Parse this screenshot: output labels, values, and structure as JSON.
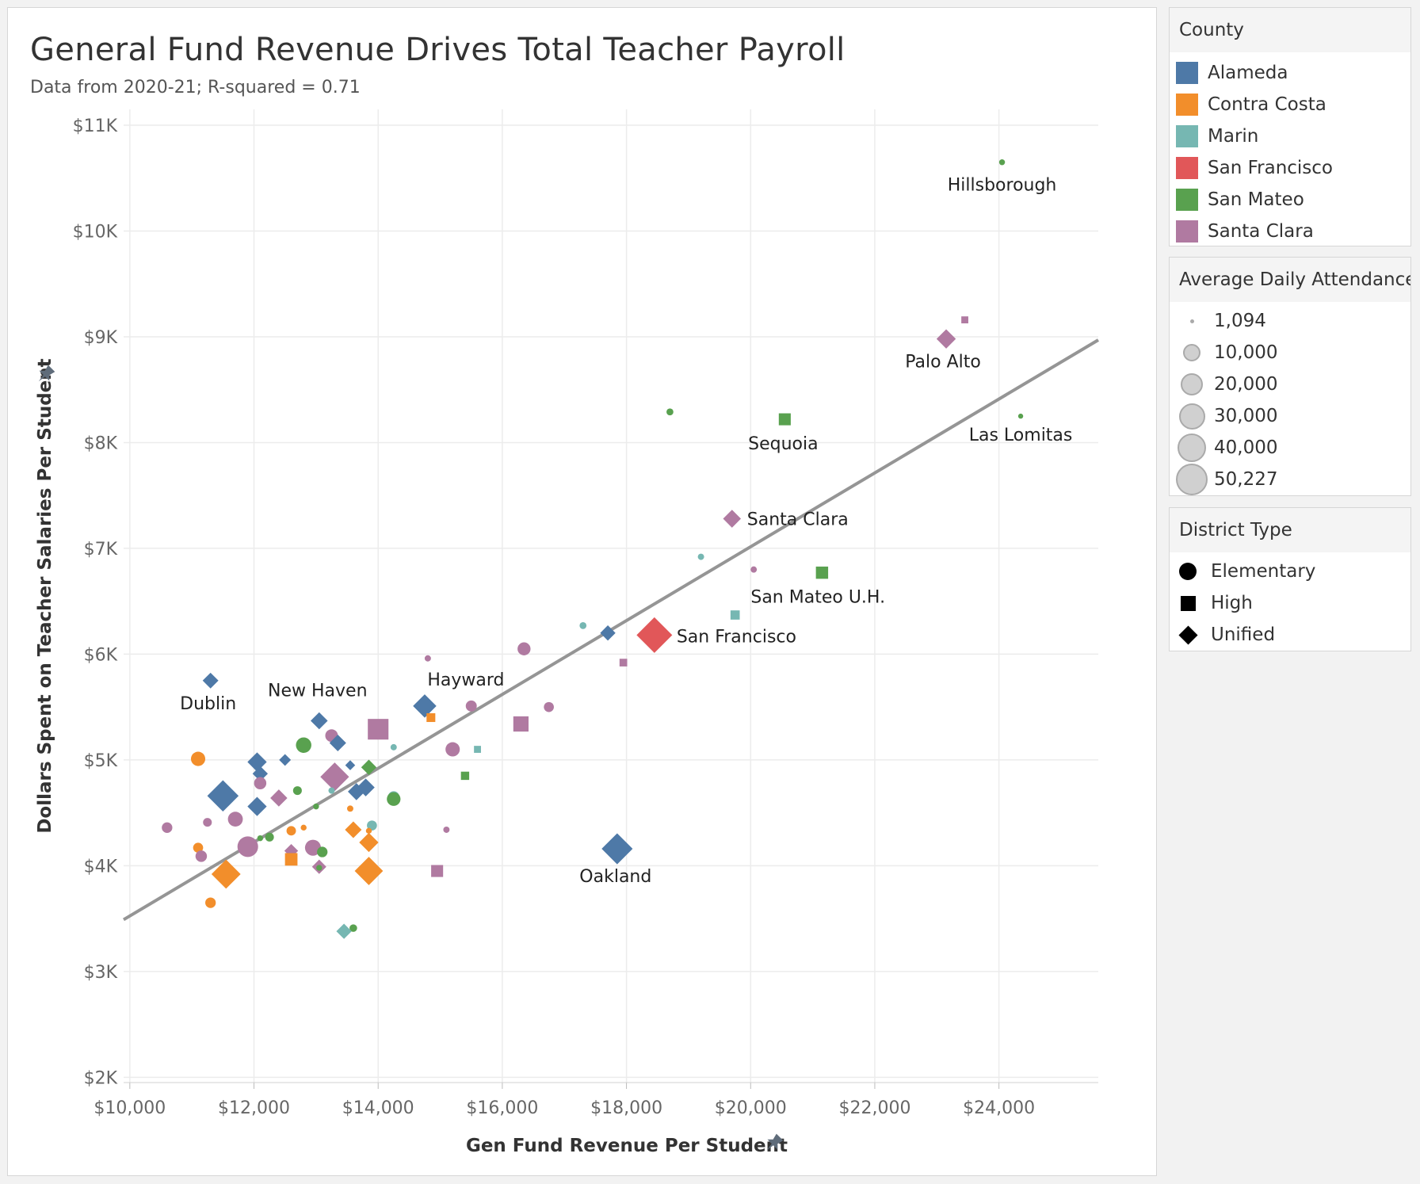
{
  "title": "General Fund Revenue Drives Total Teacher Payroll",
  "subtitle": "Data from 2020-21; R-squared = 0.71",
  "colors": {
    "Alameda": "#4e79a7",
    "Contra Costa": "#f28e2b",
    "Marin": "#76b7b2",
    "San Francisco": "#e15759",
    "San Mateo": "#59a14f",
    "Santa Clara": "#b07aa1",
    "trend": "#959595",
    "grid": "#ececec",
    "axis_text": "#666666",
    "label_text": "#222222"
  },
  "legends": {
    "county": {
      "title": "County",
      "items": [
        "Alameda",
        "Contra Costa",
        "Marin",
        "San Francisco",
        "San Mateo",
        "Santa Clara"
      ]
    },
    "attendance": {
      "title": "Average Daily Attendance",
      "items": [
        {
          "label": "1,094",
          "value": 1094
        },
        {
          "label": "10,000",
          "value": 10000
        },
        {
          "label": "20,000",
          "value": 20000
        },
        {
          "label": "30,000",
          "value": 30000
        },
        {
          "label": "40,000",
          "value": 40000
        },
        {
          "label": "50,227",
          "value": 50227
        }
      ]
    },
    "district_type": {
      "title": "District Type",
      "items": [
        {
          "label": "Elementary",
          "shape": "circle"
        },
        {
          "label": "High",
          "shape": "square"
        },
        {
          "label": "Unified",
          "shape": "diamond"
        }
      ]
    }
  },
  "chart_data": {
    "type": "scatter",
    "xlabel": "Gen Fund Revenue Per Student",
    "ylabel": "Dollars Spent on Teacher Salaries Per Student",
    "xlim": [
      9900,
      25600
    ],
    "ylim": [
      1950,
      11150
    ],
    "x_ticks": [
      10000,
      12000,
      14000,
      16000,
      18000,
      20000,
      22000,
      24000
    ],
    "x_tick_labels": [
      "$10,000",
      "$12,000",
      "$14,000",
      "$16,000",
      "$18,000",
      "$20,000",
      "$22,000",
      "$24,000"
    ],
    "y_ticks": [
      2000,
      3000,
      4000,
      5000,
      6000,
      7000,
      8000,
      9000,
      10000,
      11000
    ],
    "y_tick_labels": [
      "$2K",
      "$3K",
      "$4K",
      "$5K",
      "$6K",
      "$7K",
      "$8K",
      "$9K",
      "$10K",
      "$11K"
    ],
    "grid": true,
    "trend_line": {
      "x": [
        9900,
        25600
      ],
      "y": [
        3490,
        8970
      ]
    },
    "points": [
      {
        "x": 24050,
        "y": 10650,
        "county": "San Mateo",
        "type": "Elementary",
        "ada": 1200,
        "label": "Hillsborough"
      },
      {
        "x": 23150,
        "y": 8980,
        "county": "Santa Clara",
        "type": "Unified",
        "ada": 11000,
        "label": "Palo Alto"
      },
      {
        "x": 23450,
        "y": 9160,
        "county": "Santa Clara",
        "type": "High",
        "ada": 2000
      },
      {
        "x": 24350,
        "y": 8250,
        "county": "San Mateo",
        "type": "Elementary",
        "ada": 1100,
        "label": "Las Lomitas"
      },
      {
        "x": 18700,
        "y": 8290,
        "county": "San Mateo",
        "type": "Elementary",
        "ada": 1500
      },
      {
        "x": 20550,
        "y": 8220,
        "county": "San Mateo",
        "type": "High",
        "ada": 8000,
        "label": "Sequoia"
      },
      {
        "x": 19700,
        "y": 7280,
        "county": "Santa Clara",
        "type": "Unified",
        "ada": 9000,
        "label": "Santa Clara"
      },
      {
        "x": 21150,
        "y": 6770,
        "county": "San Mateo",
        "type": "High",
        "ada": 8500,
        "label": "San Mateo U.H."
      },
      {
        "x": 19200,
        "y": 6920,
        "county": "Marin",
        "type": "Elementary",
        "ada": 1300
      },
      {
        "x": 20050,
        "y": 6800,
        "county": "Santa Clara",
        "type": "Elementary",
        "ada": 1300
      },
      {
        "x": 19750,
        "y": 6370,
        "county": "Marin",
        "type": "High",
        "ada": 4000
      },
      {
        "x": 18450,
        "y": 6180,
        "county": "San Francisco",
        "type": "Unified",
        "ada": 50227,
        "label": "San Francisco"
      },
      {
        "x": 17700,
        "y": 6200,
        "county": "Alameda",
        "type": "Unified",
        "ada": 6000
      },
      {
        "x": 17300,
        "y": 6270,
        "county": "Marin",
        "type": "Elementary",
        "ada": 1500
      },
      {
        "x": 17950,
        "y": 5920,
        "county": "Santa Clara",
        "type": "High",
        "ada": 2500
      },
      {
        "x": 16350,
        "y": 6050,
        "county": "Santa Clara",
        "type": "Elementary",
        "ada": 7000
      },
      {
        "x": 14800,
        "y": 5960,
        "county": "Santa Clara",
        "type": "Elementary",
        "ada": 1300
      },
      {
        "x": 14750,
        "y": 5510,
        "county": "Alameda",
        "type": "Unified",
        "ada": 18000,
        "label": "Hayward"
      },
      {
        "x": 14850,
        "y": 5400,
        "county": "Contra Costa",
        "type": "High",
        "ada": 3500
      },
      {
        "x": 15500,
        "y": 5510,
        "county": "Santa Clara",
        "type": "Elementary",
        "ada": 4500
      },
      {
        "x": 16750,
        "y": 5500,
        "county": "Santa Clara",
        "type": "Elementary",
        "ada": 3500
      },
      {
        "x": 16300,
        "y": 5340,
        "county": "Santa Clara",
        "type": "High",
        "ada": 15000
      },
      {
        "x": 15200,
        "y": 5100,
        "county": "Santa Clara",
        "type": "Elementary",
        "ada": 9000
      },
      {
        "x": 15600,
        "y": 5100,
        "county": "Marin",
        "type": "High",
        "ada": 2000
      },
      {
        "x": 15400,
        "y": 4850,
        "county": "San Mateo",
        "type": "High",
        "ada": 3000
      },
      {
        "x": 14000,
        "y": 5290,
        "county": "Santa Clara",
        "type": "High",
        "ada": 32000
      },
      {
        "x": 14250,
        "y": 5120,
        "county": "Marin",
        "type": "Elementary",
        "ada": 1300
      },
      {
        "x": 13050,
        "y": 5370,
        "county": "Alameda",
        "type": "Unified",
        "ada": 8000,
        "label": "New Haven"
      },
      {
        "x": 13250,
        "y": 5230,
        "county": "Santa Clara",
        "type": "Elementary",
        "ada": 6500
      },
      {
        "x": 13350,
        "y": 5160,
        "county": "Alameda",
        "type": "Unified",
        "ada": 7500
      },
      {
        "x": 12800,
        "y": 5140,
        "county": "San Mateo",
        "type": "Elementary",
        "ada": 11000
      },
      {
        "x": 11300,
        "y": 5750,
        "county": "Alameda",
        "type": "Unified",
        "ada": 6500,
        "label": "Dublin"
      },
      {
        "x": 11100,
        "y": 5010,
        "county": "Contra Costa",
        "type": "Elementary",
        "ada": 9000
      },
      {
        "x": 12050,
        "y": 4980,
        "county": "Alameda",
        "type": "Unified",
        "ada": 11000
      },
      {
        "x": 12100,
        "y": 4870,
        "county": "Alameda",
        "type": "Unified",
        "ada": 6000
      },
      {
        "x": 12500,
        "y": 5000,
        "county": "Alameda",
        "type": "Unified",
        "ada": 3000
      },
      {
        "x": 13550,
        "y": 4950,
        "county": "Alameda",
        "type": "Unified",
        "ada": 2000
      },
      {
        "x": 13850,
        "y": 4930,
        "county": "San Mateo",
        "type": "Unified",
        "ada": 6000
      },
      {
        "x": 13300,
        "y": 4840,
        "county": "Santa Clara",
        "type": "Unified",
        "ada": 30000
      },
      {
        "x": 12100,
        "y": 4780,
        "county": "Santa Clara",
        "type": "Elementary",
        "ada": 6000
      },
      {
        "x": 12700,
        "y": 4710,
        "county": "San Mateo",
        "type": "Elementary",
        "ada": 2500
      },
      {
        "x": 13250,
        "y": 4710,
        "county": "Marin",
        "type": "Elementary",
        "ada": 1300
      },
      {
        "x": 13650,
        "y": 4700,
        "county": "Alameda",
        "type": "Unified",
        "ada": 8000
      },
      {
        "x": 13800,
        "y": 4740,
        "county": "Alameda",
        "type": "Unified",
        "ada": 9000
      },
      {
        "x": 11500,
        "y": 4660,
        "county": "Alameda",
        "type": "Unified",
        "ada": 37000
      },
      {
        "x": 14250,
        "y": 4650,
        "county": "Marin",
        "type": "Elementary",
        "ada": 5000
      },
      {
        "x": 14250,
        "y": 4630,
        "county": "San Mateo",
        "type": "Elementary",
        "ada": 8000
      },
      {
        "x": 12400,
        "y": 4640,
        "county": "Santa Clara",
        "type": "Unified",
        "ada": 8000
      },
      {
        "x": 12050,
        "y": 4560,
        "county": "Alameda",
        "type": "Unified",
        "ada": 11000
      },
      {
        "x": 13000,
        "y": 4560,
        "county": "San Mateo",
        "type": "Elementary",
        "ada": 1200
      },
      {
        "x": 13550,
        "y": 4540,
        "county": "Contra Costa",
        "type": "Elementary",
        "ada": 1300
      },
      {
        "x": 11700,
        "y": 4440,
        "county": "Santa Clara",
        "type": "Elementary",
        "ada": 10000
      },
      {
        "x": 11250,
        "y": 4410,
        "county": "Santa Clara",
        "type": "Elementary",
        "ada": 2500
      },
      {
        "x": 10600,
        "y": 4360,
        "county": "Santa Clara",
        "type": "Elementary",
        "ada": 4000
      },
      {
        "x": 13900,
        "y": 4380,
        "county": "Marin",
        "type": "Elementary",
        "ada": 3500
      },
      {
        "x": 12600,
        "y": 4330,
        "county": "Contra Costa",
        "type": "Elementary",
        "ada": 3000
      },
      {
        "x": 12800,
        "y": 4360,
        "county": "Contra Costa",
        "type": "Elementary",
        "ada": 1200
      },
      {
        "x": 13600,
        "y": 4340,
        "county": "Contra Costa",
        "type": "Unified",
        "ada": 7500
      },
      {
        "x": 13850,
        "y": 4330,
        "county": "Contra Costa",
        "type": "Elementary",
        "ada": 1200
      },
      {
        "x": 15100,
        "y": 4340,
        "county": "Santa Clara",
        "type": "Elementary",
        "ada": 1300
      },
      {
        "x": 12250,
        "y": 4270,
        "county": "San Mateo",
        "type": "Elementary",
        "ada": 2500
      },
      {
        "x": 12100,
        "y": 4260,
        "county": "San Mateo",
        "type": "Elementary",
        "ada": 1200
      },
      {
        "x": 13850,
        "y": 4220,
        "county": "Contra Costa",
        "type": "Unified",
        "ada": 11000
      },
      {
        "x": 11900,
        "y": 4180,
        "county": "Santa Clara",
        "type": "Elementary",
        "ada": 23000
      },
      {
        "x": 12950,
        "y": 4170,
        "county": "Santa Clara",
        "type": "Elementary",
        "ada": 12000
      },
      {
        "x": 11100,
        "y": 4170,
        "county": "Contra Costa",
        "type": "Elementary",
        "ada": 3500
      },
      {
        "x": 17850,
        "y": 4160,
        "county": "Alameda",
        "type": "Unified",
        "ada": 36000,
        "label": "Oakland"
      },
      {
        "x": 12600,
        "y": 4140,
        "county": "Santa Clara",
        "type": "Unified",
        "ada": 4500
      },
      {
        "x": 13100,
        "y": 4130,
        "county": "San Mateo",
        "type": "Elementary",
        "ada": 4000
      },
      {
        "x": 11150,
        "y": 4090,
        "county": "Santa Clara",
        "type": "Elementary",
        "ada": 5000
      },
      {
        "x": 12600,
        "y": 4060,
        "county": "Contra Costa",
        "type": "High",
        "ada": 9000
      },
      {
        "x": 13050,
        "y": 3990,
        "county": "Santa Clara",
        "type": "Unified",
        "ada": 5000
      },
      {
        "x": 13050,
        "y": 3980,
        "county": "San Mateo",
        "type": "Elementary",
        "ada": 1200
      },
      {
        "x": 14950,
        "y": 3950,
        "county": "Santa Clara",
        "type": "High",
        "ada": 8000
      },
      {
        "x": 13850,
        "y": 3950,
        "county": "Contra Costa",
        "type": "Unified",
        "ada": 29000
      },
      {
        "x": 11550,
        "y": 3920,
        "county": "Contra Costa",
        "type": "Unified",
        "ada": 31000
      },
      {
        "x": 11300,
        "y": 3650,
        "county": "Contra Costa",
        "type": "Elementary",
        "ada": 4000
      },
      {
        "x": 13600,
        "y": 3410,
        "county": "San Mateo",
        "type": "Elementary",
        "ada": 1800
      },
      {
        "x": 13450,
        "y": 3380,
        "county": "Marin",
        "type": "Unified",
        "ada": 6000
      }
    ]
  }
}
